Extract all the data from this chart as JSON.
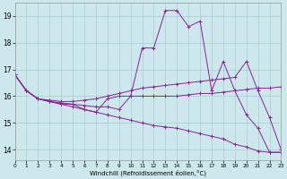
{
  "xlabel": "Windchill (Refroidissement éolien,°C)",
  "background_color": "#cce8ec",
  "grid_color": "#aacccc",
  "line_color": "#882299",
  "x_ticks": [
    0,
    1,
    2,
    3,
    4,
    5,
    6,
    7,
    8,
    9,
    10,
    11,
    12,
    13,
    14,
    15,
    16,
    17,
    18,
    19,
    20,
    21,
    22,
    23
  ],
  "xlim": [
    0,
    23
  ],
  "ylim": [
    13.6,
    19.5
  ],
  "y_ticks": [
    14,
    15,
    16,
    17,
    18,
    19
  ],
  "series": [
    {
      "x": [
        0,
        1,
        2,
        3,
        4,
        5,
        6,
        7,
        8,
        9,
        10,
        11,
        12,
        13,
        14,
        15,
        16,
        17,
        18,
        19,
        20,
        21,
        22,
        23
      ],
      "y": [
        16.8,
        16.2,
        15.9,
        15.8,
        15.7,
        15.7,
        15.5,
        15.4,
        15.9,
        16.0,
        16.0,
        17.8,
        17.8,
        19.2,
        19.2,
        18.6,
        18.8,
        16.2,
        17.3,
        16.2,
        15.3,
        14.8,
        13.9,
        13.9
      ]
    },
    {
      "x": [
        0,
        1,
        2,
        3,
        4,
        5,
        6,
        7,
        8,
        9,
        10,
        11,
        12,
        13,
        14,
        15,
        16,
        17,
        18,
        19,
        20,
        21,
        22,
        23
      ],
      "y": [
        16.8,
        16.2,
        15.9,
        15.85,
        15.8,
        15.8,
        15.85,
        15.9,
        16.0,
        16.1,
        16.2,
        16.3,
        16.35,
        16.4,
        16.45,
        16.5,
        16.55,
        16.6,
        16.65,
        16.7,
        17.3,
        16.2,
        15.2,
        14.0
      ]
    },
    {
      "x": [
        0,
        1,
        2,
        3,
        4,
        5,
        6,
        7,
        8,
        9,
        10,
        11,
        12,
        13,
        14,
        15,
        16,
        17,
        18,
        19,
        20,
        21,
        22,
        23
      ],
      "y": [
        16.8,
        16.2,
        15.9,
        15.8,
        15.75,
        15.7,
        15.65,
        15.6,
        15.6,
        15.5,
        16.0,
        16.0,
        16.0,
        16.0,
        16.0,
        16.05,
        16.1,
        16.1,
        16.15,
        16.2,
        16.25,
        16.3,
        16.3,
        16.35
      ]
    },
    {
      "x": [
        0,
        1,
        2,
        3,
        4,
        5,
        6,
        7,
        8,
        9,
        10,
        11,
        12,
        13,
        14,
        15,
        16,
        17,
        18,
        19,
        20,
        21,
        22,
        23
      ],
      "y": [
        16.8,
        16.2,
        15.9,
        15.8,
        15.7,
        15.6,
        15.5,
        15.4,
        15.3,
        15.2,
        15.1,
        15.0,
        14.9,
        14.85,
        14.8,
        14.7,
        14.6,
        14.5,
        14.4,
        14.2,
        14.1,
        13.95,
        13.9,
        13.9
      ]
    }
  ]
}
